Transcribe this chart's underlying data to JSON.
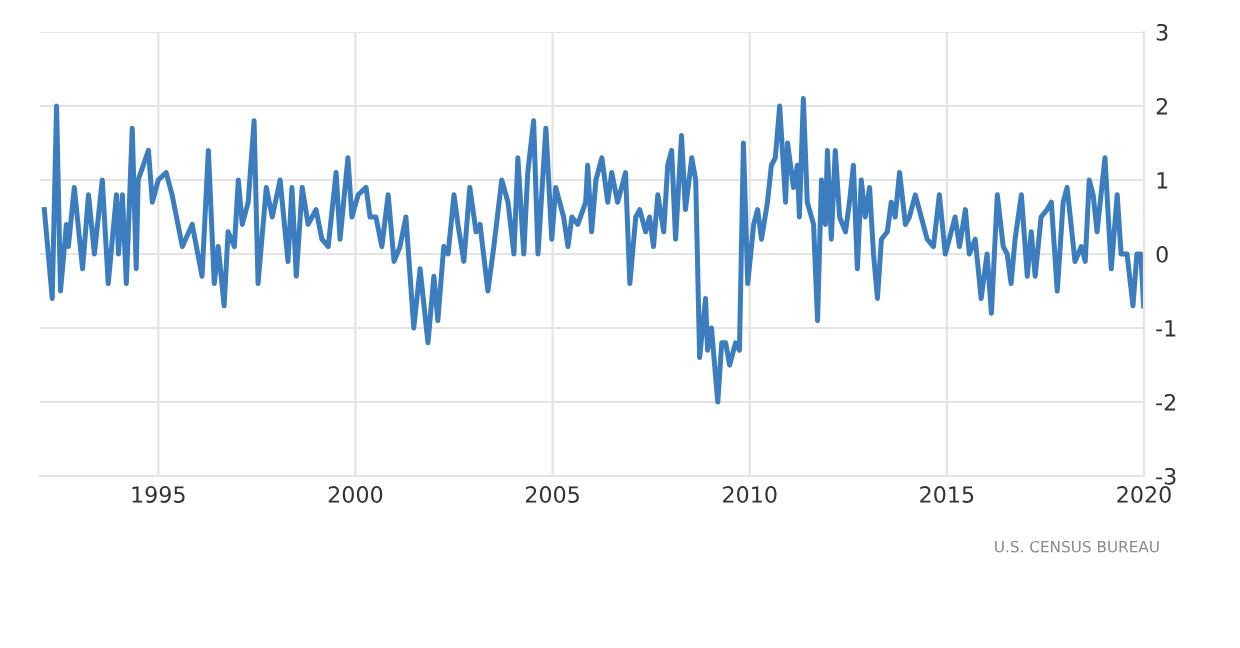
{
  "chart_data": {
    "type": "line",
    "xlim": [
      1992,
      2020
    ],
    "xticks": [
      1995,
      2000,
      2005,
      2010,
      2015,
      2020
    ],
    "ylim": [
      -3,
      3
    ],
    "yticks": [
      -3,
      -2,
      -1,
      0,
      1,
      2,
      3
    ],
    "grid": true,
    "marker": "none",
    "line_style": "solid",
    "annotations": [
      "U.S. CENSUS BUREAU"
    ],
    "series": [
      {
        "color": "#3b7dbf",
        "x": [
          1992.11,
          1992.31,
          1992.42,
          1992.52,
          1992.67,
          1992.72,
          1992.87,
          1993.08,
          1993.23,
          1993.38,
          1993.58,
          1993.73,
          1993.94,
          1993.99,
          1994.09,
          1994.19,
          1994.34,
          1994.44,
          1994.49,
          1994.75,
          1994.85,
          1995.0,
          1995.2,
          1995.35,
          1995.61,
          1995.86,
          1996.11,
          1996.27,
          1996.42,
          1996.52,
          1996.67,
          1996.77,
          1996.93,
          1997.03,
          1997.13,
          1997.28,
          1997.43,
          1997.53,
          1997.74,
          1997.89,
          1998.09,
          1998.29,
          1998.39,
          1998.5,
          1998.65,
          1998.8,
          1999.0,
          1999.15,
          1999.31,
          1999.51,
          1999.61,
          1999.81,
          1999.91,
          2000.07,
          2000.27,
          2000.37,
          2000.52,
          2000.67,
          2000.83,
          2000.98,
          2001.13,
          2001.28,
          2001.48,
          2001.64,
          2001.84,
          2001.99,
          2002.09,
          2002.24,
          2002.35,
          2002.5,
          2002.6,
          2002.75,
          2002.9,
          2003.06,
          2003.16,
          2003.36,
          2003.51,
          2003.71,
          2003.87,
          2004.02,
          2004.12,
          2004.27,
          2004.37,
          2004.52,
          2004.63,
          2004.83,
          2004.98,
          2005.08,
          2005.28,
          2005.39,
          2005.49,
          2005.64,
          2005.84,
          2005.89,
          2005.99,
          2006.1,
          2006.25,
          2006.4,
          2006.5,
          2006.65,
          2006.85,
          2006.96,
          2007.11,
          2007.21,
          2007.36,
          2007.46,
          2007.56,
          2007.67,
          2007.82,
          2007.92,
          2008.02,
          2008.12,
          2008.27,
          2008.37,
          2008.53,
          2008.63,
          2008.73,
          2008.88,
          2008.93,
          2009.03,
          2009.19,
          2009.29,
          2009.39,
          2009.49,
          2009.64,
          2009.74,
          2009.84,
          2009.95,
          2010.1,
          2010.2,
          2010.3,
          2010.45,
          2010.55,
          2010.65,
          2010.76,
          2010.91,
          2010.96,
          2011.11,
          2011.21,
          2011.26,
          2011.36,
          2011.46,
          2011.62,
          2011.72,
          2011.82,
          2011.92,
          2011.97,
          2012.07,
          2012.17,
          2012.28,
          2012.43,
          2012.53,
          2012.63,
          2012.73,
          2012.83,
          2012.93,
          2013.04,
          2013.14,
          2013.24,
          2013.34,
          2013.49,
          2013.59,
          2013.69,
          2013.8,
          2013.95,
          2014.05,
          2014.2,
          2014.35,
          2014.5,
          2014.66,
          2014.81,
          2014.96,
          2015.11,
          2015.21,
          2015.32,
          2015.47,
          2015.57,
          2015.72,
          2015.87,
          2016.02,
          2016.13,
          2016.28,
          2016.43,
          2016.53,
          2016.63,
          2016.73,
          2016.89,
          2017.04,
          2017.14,
          2017.24,
          2017.39,
          2017.54,
          2017.65,
          2017.8,
          2017.95,
          2018.05,
          2018.15,
          2018.25,
          2018.41,
          2018.51,
          2018.61,
          2018.71,
          2018.81,
          2019.01,
          2019.17,
          2019.32,
          2019.42,
          2019.57,
          2019.72,
          2019.82,
          2019.92,
          2019.99
        ],
        "values": [
          0.6,
          -0.6,
          2.0,
          -0.5,
          0.4,
          0.1,
          0.9,
          -0.2,
          0.8,
          0.0,
          1.0,
          -0.4,
          0.8,
          0.0,
          0.8,
          -0.4,
          1.7,
          -0.2,
          1.0,
          1.4,
          0.7,
          1.0,
          1.1,
          0.8,
          0.1,
          0.4,
          -0.3,
          1.4,
          -0.4,
          0.1,
          -0.7,
          0.3,
          0.1,
          1.0,
          0.4,
          0.7,
          1.8,
          -0.4,
          0.9,
          0.5,
          1.0,
          -0.1,
          0.9,
          -0.3,
          0.9,
          0.4,
          0.6,
          0.2,
          0.1,
          1.1,
          0.2,
          1.3,
          0.5,
          0.8,
          0.9,
          0.5,
          0.5,
          0.1,
          0.8,
          -0.1,
          0.1,
          0.5,
          -1.0,
          -0.2,
          -1.2,
          -0.3,
          -0.9,
          0.1,
          0.0,
          0.8,
          0.4,
          -0.1,
          0.9,
          0.3,
          0.4,
          -0.5,
          0.1,
          1.0,
          0.7,
          0.0,
          1.3,
          0.0,
          1.1,
          1.8,
          0.0,
          1.7,
          0.2,
          0.9,
          0.5,
          0.1,
          0.5,
          0.4,
          0.7,
          1.2,
          0.3,
          1.0,
          1.3,
          0.7,
          1.1,
          0.7,
          1.1,
          -0.4,
          0.5,
          0.6,
          0.3,
          0.5,
          0.1,
          0.8,
          0.3,
          1.2,
          1.4,
          0.2,
          1.6,
          0.6,
          1.3,
          1.0,
          -1.4,
          -0.6,
          -1.3,
          -1.0,
          -2.0,
          -1.2,
          -1.2,
          -1.5,
          -1.2,
          -1.3,
          1.5,
          -0.4,
          0.4,
          0.6,
          0.2,
          0.7,
          1.2,
          1.3,
          2.0,
          0.7,
          1.5,
          0.9,
          1.2,
          0.5,
          2.1,
          0.7,
          0.4,
          -0.9,
          1.0,
          0.4,
          1.4,
          0.2,
          1.4,
          0.5,
          0.3,
          0.7,
          1.2,
          -0.2,
          1.0,
          0.5,
          0.9,
          0.0,
          -0.6,
          0.2,
          0.3,
          0.7,
          0.5,
          1.1,
          0.4,
          0.5,
          0.8,
          0.5,
          0.2,
          0.1,
          0.8,
          0.0,
          0.3,
          0.5,
          0.1,
          0.6,
          0.0,
          0.2,
          -0.6,
          0.0,
          -0.8,
          0.8,
          0.1,
          0.0,
          -0.4,
          0.2,
          0.8,
          -0.3,
          0.3,
          -0.3,
          0.5,
          0.6,
          0.7,
          -0.5,
          0.7,
          0.9,
          0.4,
          -0.1,
          0.1,
          -0.1,
          1.0,
          0.8,
          0.3,
          1.3,
          -0.2,
          0.8,
          0.0,
          0.0,
          -0.7,
          0.0,
          0.0,
          -0.7
        ]
      }
    ]
  }
}
